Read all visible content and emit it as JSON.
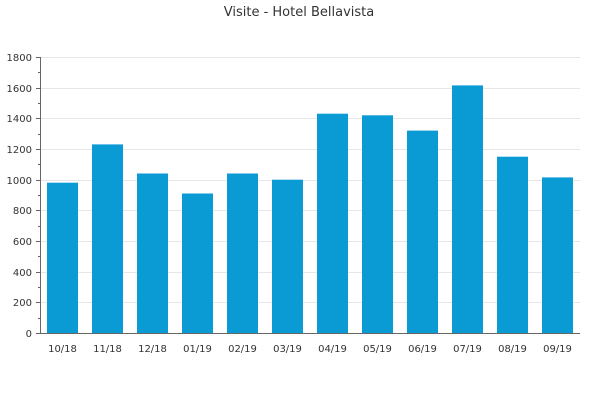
{
  "chart_data": {
    "type": "bar",
    "title": "Visite - Hotel Bellavista",
    "xlabel": "",
    "ylabel": "",
    "categories": [
      "10/18",
      "11/18",
      "12/18",
      "01/19",
      "02/19",
      "03/19",
      "04/19",
      "05/19",
      "06/19",
      "07/19",
      "08/19",
      "09/19"
    ],
    "values": [
      980,
      1230,
      1040,
      910,
      1040,
      1000,
      1430,
      1420,
      1320,
      1615,
      1150,
      1015
    ],
    "ylim": [
      0,
      1800
    ],
    "yticks": [
      0,
      200,
      400,
      600,
      800,
      1000,
      1200,
      1400,
      1600,
      1800
    ],
    "grid": true,
    "legend": "none",
    "colors": {
      "bar": "#0a9ad4",
      "grid": "#e6e6e6",
      "axis": "#666666",
      "text": "#333333"
    }
  }
}
